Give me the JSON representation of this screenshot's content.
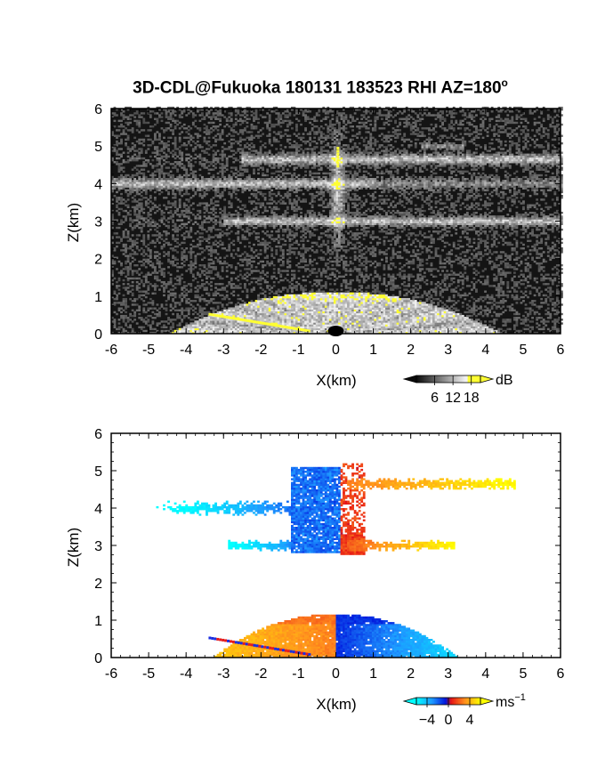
{
  "title": "3D-CDL@Fukuoka 180131 183523 RHI AZ=180",
  "title_superscript": "o",
  "chart_data": [
    {
      "type": "heatmap",
      "xlabel": "X(km)",
      "ylabel": "Z(km)",
      "xlim": [
        -6,
        6
      ],
      "ylim": [
        0,
        6
      ],
      "xticks": [
        "-6",
        "-5",
        "-4",
        "-3",
        "-2",
        "-1",
        "0",
        "1",
        "2",
        "3",
        "4",
        "5",
        "6"
      ],
      "yticks": [
        "0",
        "1",
        "2",
        "3",
        "4",
        "5",
        "6"
      ],
      "colorbar": {
        "unit": "dB",
        "ticks": [
          "6",
          "12",
          "18"
        ],
        "range": [
          0,
          21
        ],
        "colormap": "grayscale-yellow"
      },
      "features": [
        {
          "name": "layer",
          "x": [
            -6,
            6
          ],
          "z": 4.0,
          "level": 10
        },
        {
          "name": "layer",
          "x": [
            -3,
            6
          ],
          "z": 3.0,
          "level": 10
        },
        {
          "name": "layer",
          "x": [
            -2.5,
            6
          ],
          "z": 4.6,
          "level": 10
        },
        {
          "name": "boundary",
          "x": [
            -3.5,
            3.5
          ],
          "z": 1.0,
          "level": 12
        }
      ]
    },
    {
      "type": "heatmap",
      "xlabel": "X(km)",
      "ylabel": "Z(km)",
      "xlim": [
        -6,
        6
      ],
      "ylim": [
        0,
        6
      ],
      "xticks": [
        "-6",
        "-5",
        "-4",
        "-3",
        "-2",
        "-1",
        "0",
        "1",
        "2",
        "3",
        "4",
        "5",
        "6"
      ],
      "yticks": [
        "0",
        "1",
        "2",
        "3",
        "4",
        "5",
        "6"
      ],
      "colorbar": {
        "unit": "ms",
        "unit_superscript": "−1",
        "ticks": [
          "−4",
          "0",
          "4"
        ],
        "range": [
          -6,
          6
        ],
        "colormap": "cyan-blue-red-yellow"
      },
      "features": [
        {
          "name": "approaching",
          "x": [
            -6,
            0
          ],
          "z": 4.0,
          "velocity": -4
        },
        {
          "name": "receding",
          "x": [
            0,
            4.8
          ],
          "z": 4.6,
          "velocity": 4
        },
        {
          "name": "approaching",
          "x": [
            -3,
            0
          ],
          "z": 3.0,
          "velocity": -4
        },
        {
          "name": "receding",
          "x": [
            0,
            3.2
          ],
          "z": 3.0,
          "velocity": 4
        },
        {
          "name": "boundary",
          "x": [
            -3.2,
            0
          ],
          "z": 0.6,
          "velocity": 3
        },
        {
          "name": "boundary",
          "x": [
            0,
            3.1
          ],
          "z": 0.6,
          "velocity": -3
        }
      ]
    }
  ]
}
